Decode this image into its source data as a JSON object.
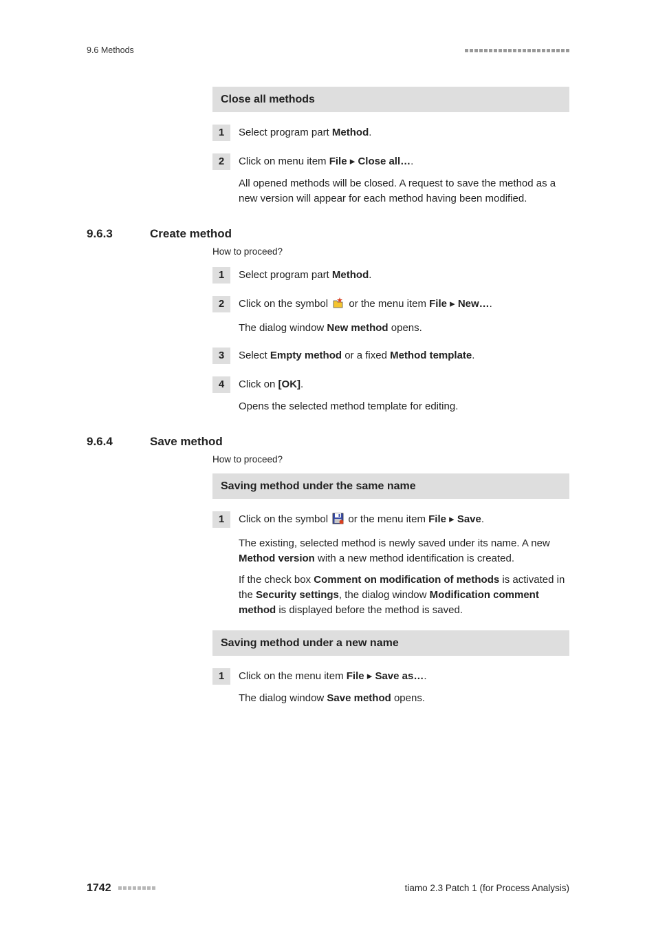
{
  "header": {
    "section_label": "9.6 Methods",
    "dot_count_top": 22,
    "dot_count_footer": 8,
    "dot_color_top": "#9a9a9a",
    "dot_color_footer": "#b8b8b8"
  },
  "block1": {
    "heading": "Close all methods",
    "background": "#dedede",
    "steps": [
      {
        "n": "1",
        "p1_pre": "Select program part ",
        "p1_b1": "Method",
        "p1_post": "."
      },
      {
        "n": "2",
        "p1_pre": "Click on menu item ",
        "p1_b1": "File",
        "p1_arrow": " ▸ ",
        "p1_b2": "Close all…",
        "p1_post": ".",
        "p2": "All opened methods will be closed. A request to save the method as a new version will appear for each method having been modified."
      }
    ]
  },
  "sec963": {
    "num": "9.6.3",
    "title": "Create method",
    "howto": "How to proceed?",
    "steps": [
      {
        "n": "1",
        "p1_pre": "Select program part ",
        "p1_b1": "Method",
        "p1_post": "."
      },
      {
        "n": "2",
        "p1_pre": "Click on the symbol ",
        "p1_icon": "new",
        "p1_mid": " or the menu item ",
        "p1_b1": "File",
        "p1_arrow": " ▸ ",
        "p1_b2": "New…",
        "p1_post": ".",
        "p2_pre": "The dialog window ",
        "p2_b1": "New method",
        "p2_post": " opens."
      },
      {
        "n": "3",
        "p1_pre": "Select ",
        "p1_b1": "Empty method",
        "p1_mid": " or a fixed ",
        "p1_b2": "Method template",
        "p1_post": "."
      },
      {
        "n": "4",
        "p1_pre": "Click on ",
        "p1_b1": "[OK]",
        "p1_post": ".",
        "p2": "Opens the selected method template for editing."
      }
    ]
  },
  "sec964": {
    "num": "9.6.4",
    "title": "Save method",
    "howto": "How to proceed?",
    "sub1": {
      "heading": "Saving method under the same name",
      "step": {
        "n": "1",
        "p1_pre": "Click on the symbol ",
        "p1_icon": "save",
        "p1_mid": " or the menu item ",
        "p1_b1": "File",
        "p1_arrow": " ▸ ",
        "p1_b2": "Save",
        "p1_post": ".",
        "p2_pre": "The existing, selected method is newly saved under its name. A new ",
        "p2_b1": "Method version",
        "p2_post": " with a new method identification is created.",
        "p3_pre": "If the check box ",
        "p3_b1": "Comment on modification of methods",
        "p3_mid1": " is activated in the ",
        "p3_b2": "Security settings",
        "p3_mid2": ", the dialog window ",
        "p3_b3": "Modification comment method",
        "p3_post": " is displayed before the method is saved."
      }
    },
    "sub2": {
      "heading": "Saving method under a new name",
      "step": {
        "n": "1",
        "p1_pre": "Click on the menu item ",
        "p1_b1": "File",
        "p1_arrow": " ▸ ",
        "p1_b2": "Save as…",
        "p1_post": ".",
        "p2_pre": "The dialog window ",
        "p2_b1": "Save method",
        "p2_post": " opens."
      }
    }
  },
  "footer": {
    "page": "1742",
    "product": "tiamo 2.3 Patch 1 (for Process Analysis)"
  },
  "icons": {
    "new": {
      "folder_fill": "#f4c430",
      "folder_stroke": "#555",
      "star_fill": "#d94020"
    },
    "save": {
      "disk_fill": "#3a4da8",
      "disk_stroke": "#2a2a2a",
      "label_fill": "#ffffff",
      "dot_fill": "#d94020"
    }
  }
}
